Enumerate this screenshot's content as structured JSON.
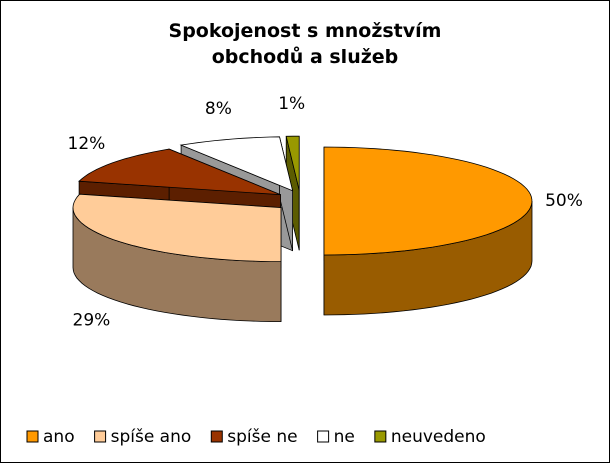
{
  "chart_data": {
    "type": "pie3d",
    "title": "Spokojenost s množstvím obchodů a služeb",
    "categories": [
      "ano",
      "spíše ano",
      "spíše ne",
      "ne",
      "neuvedeno"
    ],
    "values": [
      50,
      29,
      12,
      8,
      1
    ],
    "value_labels": [
      "50%",
      "29%",
      "12%",
      "8%",
      "1%"
    ],
    "colors": [
      "#ff9900",
      "#ffcc99",
      "#993300",
      "#ffffff",
      "#999900"
    ],
    "legend": "bottom"
  }
}
